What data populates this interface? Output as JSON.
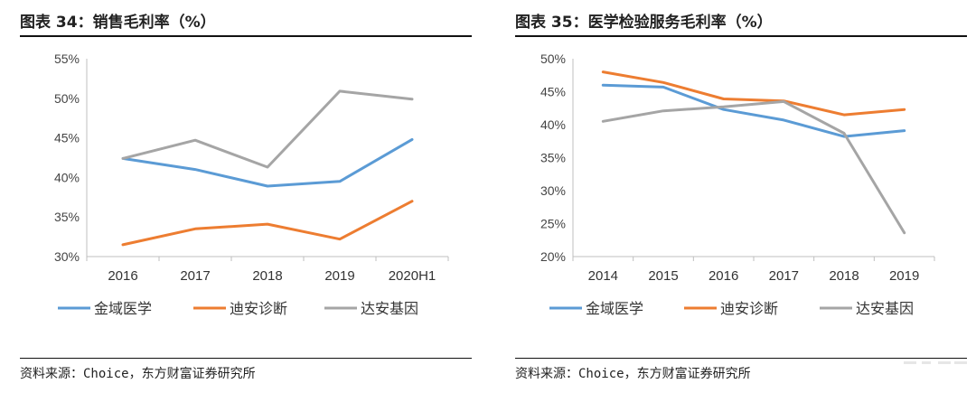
{
  "figures": [
    {
      "title": "图表 34：销售毛利率（%）",
      "source": "资料来源：Choice，东方财富证券研究所",
      "chart_data": {
        "type": "line",
        "categories": [
          "2016",
          "2017",
          "2018",
          "2019",
          "2020H1"
        ],
        "y_ticks": [
          "55%",
          "50%",
          "45%",
          "40%",
          "35%",
          "30%"
        ],
        "ylim": [
          30,
          55
        ],
        "grid": false,
        "legend_position": "bottom",
        "series": [
          {
            "name": "金域医学",
            "color": "#5b9bd5",
            "values": [
              42.4,
              41.0,
              38.9,
              39.5,
              44.8
            ]
          },
          {
            "name": "迪安诊断",
            "color": "#ed7d31",
            "values": [
              31.5,
              33.5,
              34.1,
              32.2,
              37.0
            ]
          },
          {
            "name": "达安基因",
            "color": "#a5a5a5",
            "values": [
              42.4,
              44.7,
              41.3,
              50.9,
              49.9
            ]
          }
        ]
      }
    },
    {
      "title": "图表 35：医学检验服务毛利率（%）",
      "source": "资料来源：Choice，东方财富证券研究所",
      "chart_data": {
        "type": "line",
        "categories": [
          "2014",
          "2015",
          "2016",
          "2017",
          "2018",
          "2019"
        ],
        "y_ticks": [
          "50%",
          "45%",
          "40%",
          "35%",
          "30%",
          "25%",
          "20%"
        ],
        "ylim": [
          20,
          50
        ],
        "grid": false,
        "legend_position": "bottom",
        "series": [
          {
            "name": "金域医学",
            "color": "#5b9bd5",
            "values": [
              46.0,
              45.7,
              42.3,
              40.7,
              38.2,
              39.1
            ]
          },
          {
            "name": "迪安诊断",
            "color": "#ed7d31",
            "values": [
              48.0,
              46.4,
              43.9,
              43.6,
              41.5,
              42.3
            ]
          },
          {
            "name": "达安基因",
            "color": "#a5a5a5",
            "values": [
              40.5,
              42.1,
              42.7,
              43.5,
              38.7,
              23.6
            ]
          }
        ]
      }
    }
  ]
}
